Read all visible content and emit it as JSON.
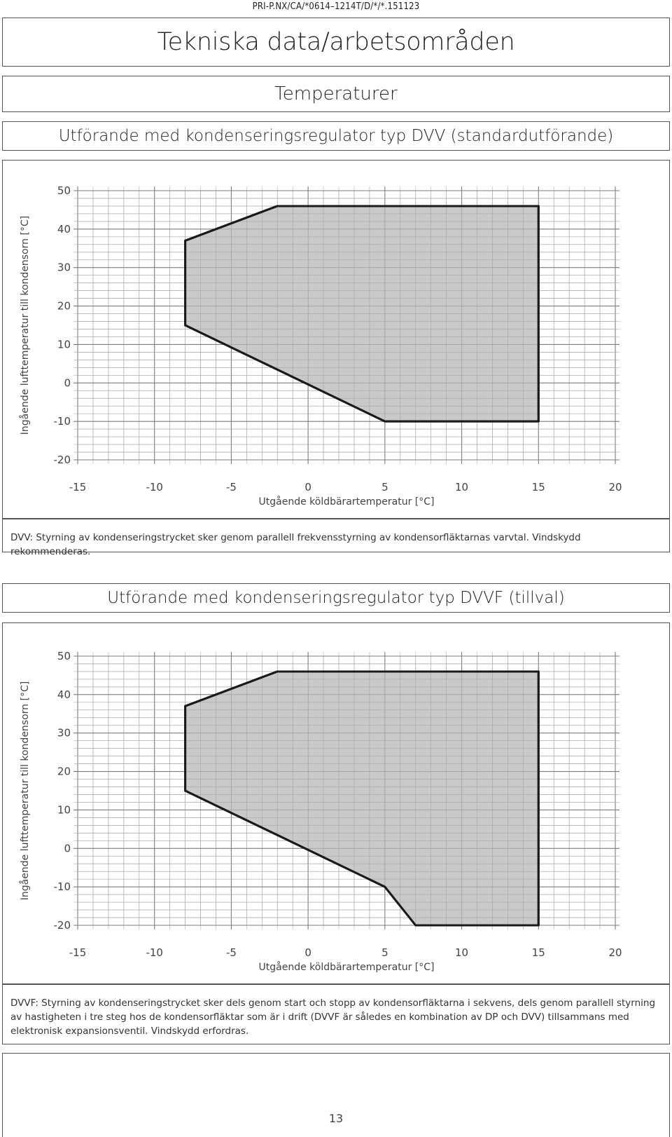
{
  "header": {
    "doc_code": "PRI-P.NX/CA/*0614–1214T/D/*/*.151123",
    "title": "Tekniska data/arbetsområden"
  },
  "section1": {
    "heading": "Temperaturer",
    "subheading": "Utförande med kondenseringsregulator typ DVV (standardutförande)",
    "caption": "DVV: Styrning av kondenseringstrycket sker genom parallell frekvensstyrning av kondensorfläktarnas varvtal. Vindskydd rekommenderas."
  },
  "section2": {
    "subheading": "Utförande med kondenseringsregulator typ DVVF (tillval)",
    "caption": "DVVF: Styrning av kondenseringstrycket sker dels genom start och stopp av kondensorfläktarna i sekvens, dels genom parallell styrning av hastigheten i tre steg hos de kondensorfläktar som är i drift (DVVF är således en kombination av DP och DVV) tillsammans med elektronisk expansionsventil. Vindskydd erfordras."
  },
  "chart_data": [
    {
      "type": "area",
      "title": "",
      "xlabel": "Utgående köldbärartemperatur [°C]",
      "ylabel": "Ingående lufttemperatur till kondensorn [°C]",
      "xlim": [
        -15,
        20
      ],
      "ylim": [
        -20,
        50
      ],
      "x_ticks": [
        "-15",
        "-10",
        "-5",
        "0",
        "5",
        "10",
        "15",
        "20"
      ],
      "y_ticks": [
        "50",
        "40",
        "30",
        "20",
        "10",
        "0",
        "-10",
        "-20"
      ],
      "grid": true,
      "series": [
        {
          "fill": "#c0c0c2",
          "stroke": "#1a1a1a",
          "points": [
            [
              -8,
              37
            ],
            [
              -2,
              46
            ],
            [
              15,
              46
            ],
            [
              15,
              -10
            ],
            [
              5,
              -10
            ],
            [
              -8,
              15
            ]
          ]
        }
      ]
    },
    {
      "type": "area",
      "title": "",
      "xlabel": "Utgående köldbärartemperatur [°C]",
      "ylabel": "Ingående lufttemperatur till kondensorn [°C]",
      "xlim": [
        -15,
        20
      ],
      "ylim": [
        -20,
        50
      ],
      "x_ticks": [
        "-15",
        "-10",
        "-5",
        "0",
        "5",
        "10",
        "15",
        "20"
      ],
      "y_ticks": [
        "50",
        "40",
        "30",
        "20",
        "10",
        "0",
        "-10",
        "-20"
      ],
      "grid": true,
      "series": [
        {
          "fill": "#c0c0c2",
          "stroke": "#1a1a1a",
          "points": [
            [
              -8,
              37
            ],
            [
              -2,
              46
            ],
            [
              15,
              46
            ],
            [
              15,
              -20
            ],
            [
              7,
              -20
            ],
            [
              5,
              -10
            ],
            [
              -8,
              15
            ]
          ]
        }
      ]
    }
  ],
  "footer": {
    "page_number": "13"
  }
}
